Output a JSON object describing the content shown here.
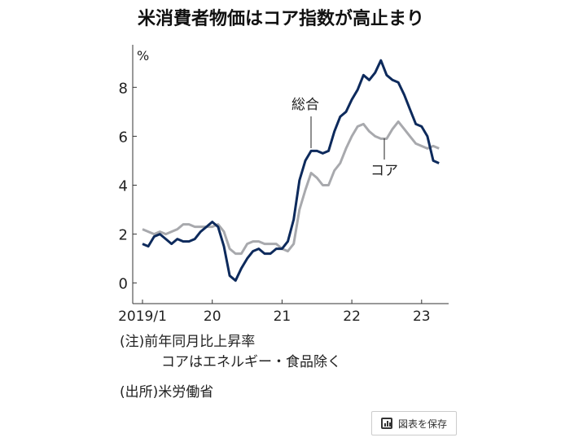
{
  "chart_data": {
    "type": "line",
    "title": "米消費者物価はコア指数が高止まり",
    "ylabel": "%",
    "ylim": [
      -0.8,
      9.9
    ],
    "yticks": [
      "0",
      "2",
      "4",
      "6",
      "8"
    ],
    "xticks": [
      "2019/1",
      "20",
      "21",
      "22",
      "23"
    ],
    "x_start": "2019/1",
    "x_unit": "month",
    "series": [
      {
        "name": "総合",
        "color": "#0d2a5c",
        "values": [
          1.6,
          1.5,
          1.9,
          2.0,
          1.8,
          1.6,
          1.8,
          1.7,
          1.7,
          1.8,
          2.1,
          2.3,
          2.5,
          2.3,
          1.5,
          0.3,
          0.1,
          0.6,
          1.0,
          1.3,
          1.4,
          1.2,
          1.2,
          1.4,
          1.4,
          1.7,
          2.6,
          4.2,
          5.0,
          5.4,
          5.4,
          5.3,
          5.4,
          6.2,
          6.8,
          7.0,
          7.5,
          7.9,
          8.5,
          8.3,
          8.6,
          9.1,
          8.5,
          8.3,
          8.2,
          7.7,
          7.1,
          6.5,
          6.4,
          6.0,
          5.0,
          4.9
        ]
      },
      {
        "name": "コア",
        "color": "#a8a9ad",
        "values": [
          2.2,
          2.1,
          2.0,
          2.1,
          2.0,
          2.1,
          2.2,
          2.4,
          2.4,
          2.3,
          2.3,
          2.3,
          2.3,
          2.4,
          2.1,
          1.4,
          1.2,
          1.2,
          1.6,
          1.7,
          1.7,
          1.6,
          1.6,
          1.6,
          1.4,
          1.3,
          1.6,
          3.0,
          3.8,
          4.5,
          4.3,
          4.0,
          4.0,
          4.6,
          4.9,
          5.5,
          6.0,
          6.4,
          6.5,
          6.2,
          6.0,
          5.9,
          5.9,
          6.3,
          6.6,
          6.3,
          6.0,
          5.7,
          5.6,
          5.5,
          5.6,
          5.5
        ]
      }
    ],
    "annotations": [
      "総合",
      "コア"
    ]
  },
  "notes": {
    "line1": "(注)前年同月比上昇率",
    "line2": "コアはエネルギー・食品除く",
    "source": "(出所)米労働省"
  },
  "save_button": {
    "label": "図表を保存"
  }
}
